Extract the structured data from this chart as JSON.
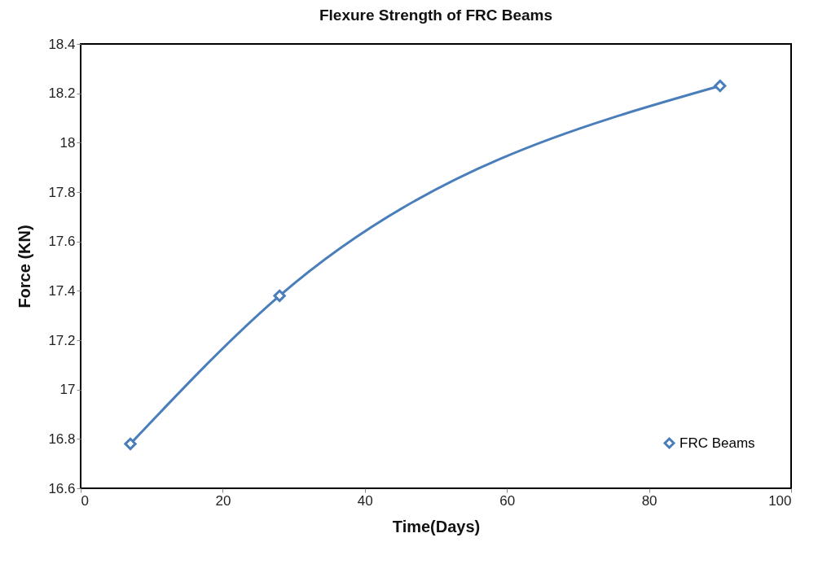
{
  "chart_data": {
    "type": "line",
    "title": "Flexure Strength of FRC Beams",
    "xlabel": "Time(Days)",
    "ylabel": "Force (KN)",
    "x": [
      7,
      28,
      90
    ],
    "series": [
      {
        "name": "FRC Beams",
        "color": "#4a7ebb",
        "values": [
          16.78,
          17.38,
          18.23
        ]
      }
    ],
    "xlim": [
      0,
      100
    ],
    "xticks": [
      0,
      20,
      40,
      60,
      80,
      100
    ],
    "ylim": [
      16.6,
      18.4
    ],
    "yticks": [
      16.6,
      16.8,
      17,
      17.2,
      17.4,
      17.6,
      17.8,
      18,
      18.2,
      18.4
    ],
    "grid": false,
    "legend": "bottom right",
    "marker": "diamond",
    "line_style": "solid"
  }
}
